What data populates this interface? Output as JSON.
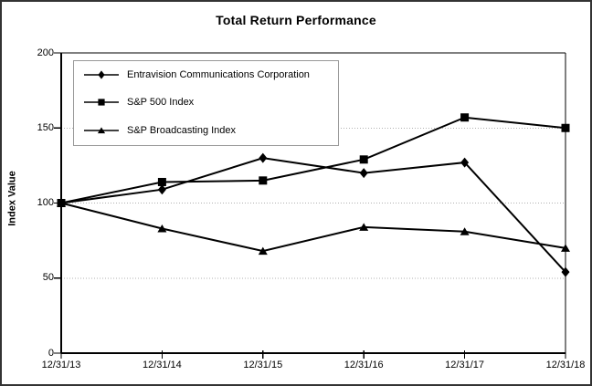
{
  "chart_data": {
    "type": "line",
    "title": "Total Return Performance",
    "ylabel": "Index Value",
    "xlabel": "",
    "categories": [
      "12/31/13",
      "12/31/14",
      "12/31/15",
      "12/31/16",
      "12/31/17",
      "12/31/18"
    ],
    "series": [
      {
        "name": "Entravision Communications Corporation",
        "marker": "diamond",
        "values": [
          100,
          109,
          130,
          120,
          127,
          54
        ]
      },
      {
        "name": "S&P 500 Index",
        "marker": "square",
        "values": [
          100,
          114,
          115,
          129,
          157,
          150
        ]
      },
      {
        "name": "S&P Broadcasting Index",
        "marker": "triangle",
        "values": [
          100,
          83,
          68,
          84,
          81,
          70
        ]
      }
    ],
    "ylim": [
      0,
      200
    ],
    "yticks": [
      0,
      50,
      100,
      150,
      200
    ],
    "gridlines_at": [
      50,
      100,
      150
    ],
    "grid": true,
    "legend_position": "top-left-inside",
    "colors": {
      "series_line": "#000000",
      "grid": "#b0b0b0",
      "frame": "#000000",
      "legend_border": "#999999",
      "background": "#ffffff",
      "text": "#000000"
    }
  }
}
